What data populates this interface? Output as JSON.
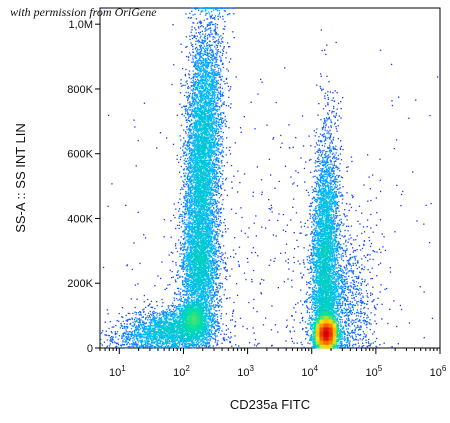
{
  "watermark": "with permission from OriGene",
  "chart_data": {
    "type": "scatter",
    "title": "",
    "xlabel": "CD235a FITC",
    "ylabel": "SS-A :: SS INT LIN",
    "x_scale": "log",
    "xlim": [
      5,
      1000000
    ],
    "ylim": [
      0,
      1050000
    ],
    "grid": false,
    "legend": "none",
    "density_colormap": [
      "#1a1aff",
      "#00b4ff",
      "#00e0a0",
      "#ffe600",
      "#ff7a00",
      "#d40000"
    ],
    "x_ticks": [
      {
        "value": 10,
        "base": "10",
        "exp": "1"
      },
      {
        "value": 100,
        "base": "10",
        "exp": "2"
      },
      {
        "value": 1000,
        "base": "10",
        "exp": "3"
      },
      {
        "value": 10000,
        "base": "10",
        "exp": "4"
      },
      {
        "value": 100000,
        "base": "10",
        "exp": "5"
      },
      {
        "value": 1000000,
        "base": "10",
        "exp": "6"
      }
    ],
    "y_ticks": [
      {
        "value": 0,
        "label": "0"
      },
      {
        "value": 200000,
        "label": "200K"
      },
      {
        "value": 400000,
        "label": "400K"
      },
      {
        "value": 600000,
        "label": "600K"
      },
      {
        "value": 800000,
        "label": "800K"
      },
      {
        "value": 1000000,
        "label": "1,0M"
      }
    ],
    "populations": [
      {
        "x_center": 70,
        "x_spread_decades": 0.35,
        "y_center": 60000,
        "y_spread": 30000,
        "y_cap": 1050000,
        "n": 1800,
        "slope_decades_per_y": 0,
        "seed": 11
      },
      {
        "x_center": 140,
        "x_spread_decades": 0.12,
        "y_center": 90000,
        "y_spread": 30000,
        "y_cap": 1050000,
        "n": 1200,
        "slope_decades_per_y": 0,
        "seed": 12
      },
      {
        "x_center": 200,
        "x_spread_decades": 0.14,
        "y_center": 580000,
        "y_spread": 230000,
        "y_cap": 1050000,
        "n": 6000,
        "slope_decades_per_y": 2e-07,
        "seed": 13
      },
      {
        "x_center": 190,
        "x_spread_decades": 0.15,
        "y_center": 250000,
        "y_spread": 90000,
        "y_cap": 1050000,
        "n": 2000,
        "slope_decades_per_y": 0,
        "seed": 14
      },
      {
        "x_center": 17000,
        "x_spread_decades": 0.08,
        "y_center": 45000,
        "y_spread": 25000,
        "y_cap": 1050000,
        "n": 4000,
        "slope_decades_per_y": 0,
        "seed": 15
      },
      {
        "x_center": 16000,
        "x_spread_decades": 0.1,
        "y_center": 260000,
        "y_spread": 200000,
        "y_cap": 1050000,
        "n": 4500,
        "slope_decades_per_y": 1e-07,
        "seed": 16
      },
      {
        "x_center": 30000,
        "x_spread_decades": 0.25,
        "y_center": 150000,
        "y_spread": 120000,
        "y_cap": 1050000,
        "n": 1200,
        "slope_decades_per_y": 0,
        "seed": 17
      },
      {
        "x_center": 2500,
        "x_spread_decades": 1.3,
        "y_center": 300000,
        "y_spread": 260000,
        "y_cap": 1050000,
        "n": 500,
        "slope_decades_per_y": 0,
        "seed": 18
      },
      {
        "x_center": 30,
        "x_spread_decades": 0.4,
        "y_center": 30000,
        "y_spread": 20000,
        "y_cap": 1050000,
        "n": 500,
        "slope_decades_per_y": 0,
        "seed": 19
      }
    ]
  }
}
